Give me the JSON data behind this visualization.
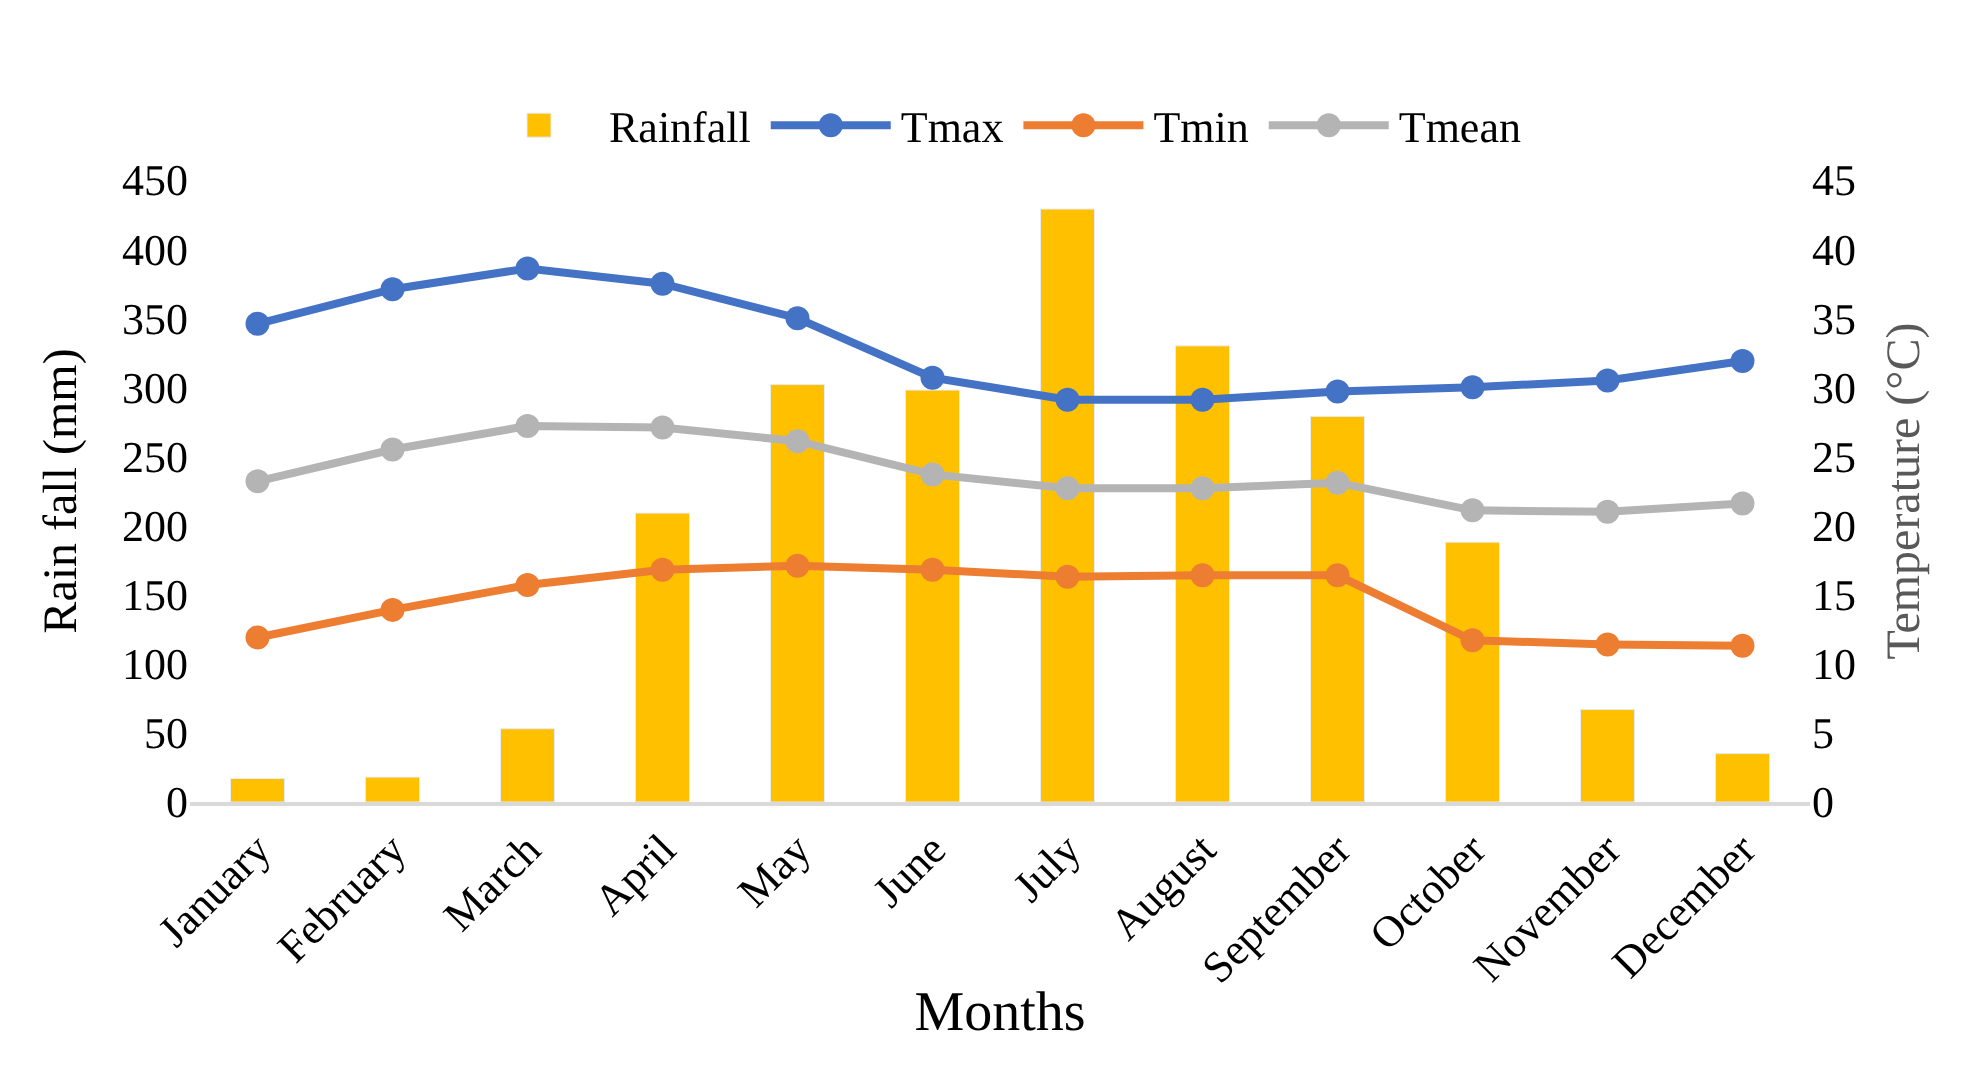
{
  "chart_data": {
    "type": "bar",
    "xlabel": "Months",
    "ylabel": "Rain fall (mm)",
    "y2label": "Temperature (°C)",
    "categories": [
      "January",
      "February",
      "March",
      "April",
      "May",
      "June",
      "July",
      "August",
      "September",
      "October",
      "November",
      "December"
    ],
    "series": [
      {
        "name": "Rainfall",
        "color": "#ffc000",
        "values": [
          17,
          18,
          53,
          209,
          302,
          298,
          429,
          330,
          279,
          188,
          67,
          35
        ]
      },
      {
        "name": "Tmax",
        "type": "line",
        "axis": "y2",
        "color": "#4472c4",
        "values": [
          34.6,
          37.1,
          38.6,
          37.5,
          35.0,
          30.7,
          29.1,
          29.1,
          29.7,
          30.0,
          30.5,
          31.9
        ]
      },
      {
        "name": "Tmin",
        "type": "line",
        "axis": "y2",
        "color": "#ed7d31",
        "values": [
          11.9,
          13.9,
          15.7,
          16.8,
          17.1,
          16.8,
          16.3,
          16.4,
          16.4,
          11.7,
          11.4,
          11.3
        ]
      },
      {
        "name": "Tmean",
        "type": "line",
        "axis": "y2",
        "color": "#b4b4b4",
        "values": [
          23.2,
          25.5,
          27.2,
          27.1,
          26.1,
          23.7,
          22.7,
          22.7,
          23.1,
          21.1,
          21.0,
          21.6
        ]
      }
    ],
    "ylim": [
      0,
      450
    ],
    "yticks": [
      0,
      50,
      100,
      150,
      200,
      250,
      300,
      350,
      400,
      450
    ],
    "y2lim": [
      0,
      45
    ],
    "y2ticks": [
      0,
      5,
      10,
      15,
      20,
      25,
      30,
      35,
      40,
      45
    ],
    "legend": "top",
    "grid": false,
    "marker": "circle",
    "line_style": "solid"
  }
}
